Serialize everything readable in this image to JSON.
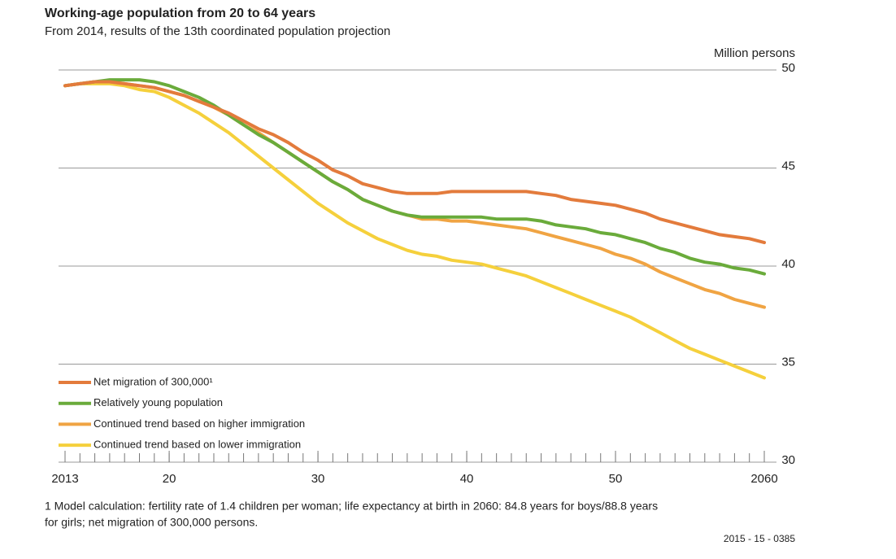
{
  "chart_data": {
    "type": "line",
    "title": "Working-age population from 20 to 64 years",
    "subtitle": "From 2014, results of the 13th coordinated population projection",
    "y_axis_label": "Million persons",
    "footnote": [
      "1 Model calculation: fertility rate of 1.4 children per woman; life expectancy at birth in 2060: 84.8 years for boys/88.8 years",
      "for girls; net migration of 300,000 persons."
    ],
    "source": "2015 - 15 - 0385",
    "x": [
      2013,
      2014,
      2015,
      2016,
      2017,
      2018,
      2019,
      2020,
      2021,
      2022,
      2023,
      2024,
      2025,
      2026,
      2027,
      2028,
      2029,
      2030,
      2031,
      2032,
      2033,
      2034,
      2035,
      2036,
      2037,
      2038,
      2039,
      2040,
      2041,
      2042,
      2043,
      2044,
      2045,
      2046,
      2047,
      2048,
      2049,
      2050,
      2051,
      2052,
      2053,
      2054,
      2055,
      2056,
      2057,
      2058,
      2059,
      2060
    ],
    "xlim": [
      2013,
      2060
    ],
    "xticks": [
      {
        "value": 2013,
        "label": "2013"
      },
      {
        "value": 2020,
        "label": "20"
      },
      {
        "value": 2030,
        "label": "30"
      },
      {
        "value": 2040,
        "label": "40"
      },
      {
        "value": 2050,
        "label": "50"
      },
      {
        "value": 2060,
        "label": "2060"
      }
    ],
    "ylim": [
      30,
      50
    ],
    "yticks": [
      30,
      35,
      40,
      45,
      50
    ],
    "grid": true,
    "legend": "lower left",
    "series": [
      {
        "name": "Net migration of 300,000¹",
        "color": "#e37b3c",
        "values": [
          49.2,
          49.3,
          49.4,
          49.4,
          49.3,
          49.2,
          49.1,
          48.9,
          48.7,
          48.4,
          48.1,
          47.8,
          47.4,
          47.0,
          46.7,
          46.3,
          45.8,
          45.4,
          44.9,
          44.6,
          44.2,
          44.0,
          43.8,
          43.7,
          43.7,
          43.7,
          43.8,
          43.8,
          43.8,
          43.8,
          43.8,
          43.8,
          43.7,
          43.6,
          43.4,
          43.3,
          43.2,
          43.1,
          42.9,
          42.7,
          42.4,
          42.2,
          42.0,
          41.8,
          41.6,
          41.5,
          41.4,
          41.2
        ]
      },
      {
        "name": "Relatively young population",
        "color": "#6aab3b",
        "values": [
          49.2,
          49.3,
          49.4,
          49.5,
          49.5,
          49.5,
          49.4,
          49.2,
          48.9,
          48.6,
          48.2,
          47.7,
          47.2,
          46.7,
          46.3,
          45.8,
          45.3,
          44.8,
          44.3,
          43.9,
          43.4,
          43.1,
          42.8,
          42.6,
          42.5,
          42.5,
          42.5,
          42.5,
          42.5,
          42.4,
          42.4,
          42.4,
          42.3,
          42.1,
          42.0,
          41.9,
          41.7,
          41.6,
          41.4,
          41.2,
          40.9,
          40.7,
          40.4,
          40.2,
          40.1,
          39.9,
          39.8,
          39.6
        ]
      },
      {
        "name": "Continued trend based on higher immigration",
        "color": "#f0a443",
        "values": [
          49.2,
          49.3,
          49.4,
          49.4,
          49.3,
          49.2,
          49.1,
          48.9,
          48.7,
          48.4,
          48.1,
          47.7,
          47.2,
          46.8,
          46.3,
          45.8,
          45.3,
          44.8,
          44.3,
          43.9,
          43.4,
          43.1,
          42.8,
          42.6,
          42.4,
          42.4,
          42.3,
          42.3,
          42.2,
          42.1,
          42.0,
          41.9,
          41.7,
          41.5,
          41.3,
          41.1,
          40.9,
          40.6,
          40.4,
          40.1,
          39.7,
          39.4,
          39.1,
          38.8,
          38.6,
          38.3,
          38.1,
          37.9
        ]
      },
      {
        "name": "Continued trend based on lower immigration",
        "color": "#f5d03c",
        "values": [
          49.2,
          49.3,
          49.3,
          49.3,
          49.2,
          49.0,
          48.9,
          48.6,
          48.2,
          47.8,
          47.3,
          46.8,
          46.2,
          45.6,
          45.0,
          44.4,
          43.8,
          43.2,
          42.7,
          42.2,
          41.8,
          41.4,
          41.1,
          40.8,
          40.6,
          40.5,
          40.3,
          40.2,
          40.1,
          39.9,
          39.7,
          39.5,
          39.2,
          38.9,
          38.6,
          38.3,
          38.0,
          37.7,
          37.4,
          37.0,
          36.6,
          36.2,
          35.8,
          35.5,
          35.2,
          34.9,
          34.6,
          34.3
        ]
      }
    ]
  }
}
